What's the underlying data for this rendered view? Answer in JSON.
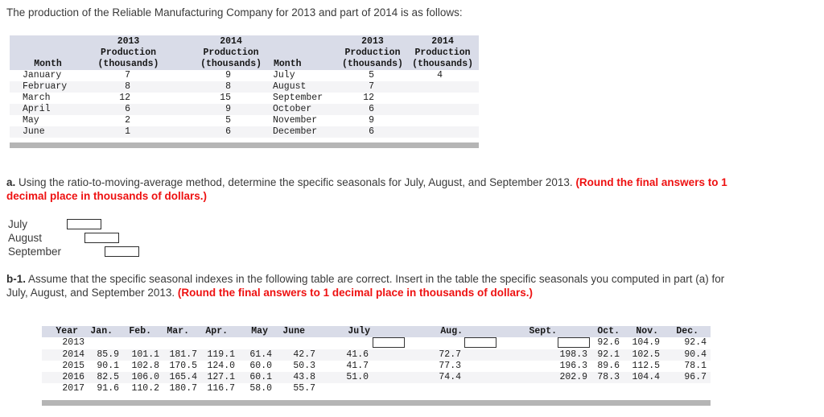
{
  "intro": "The production of the Reliable Manufacturing Company for 2013 and part of 2014 is as follows:",
  "colors": {
    "accent_red": "#ee1111",
    "table_header_bg": "#d9dce8",
    "row_alt_bg": "#f4f4f6",
    "scrollbar": "#b5b5b5"
  },
  "table1": {
    "headers": {
      "month": "Month",
      "prod2013": [
        "2013",
        "Production",
        "(thousands)"
      ],
      "prod2014": [
        "2014",
        "Production",
        "(thousands)"
      ]
    },
    "rows": [
      {
        "m1": "January",
        "a13": "7",
        "a14": "9",
        "m2": "July",
        "b13": "5",
        "b14": "4"
      },
      {
        "m1": "February",
        "a13": "8",
        "a14": "8",
        "m2": "August",
        "b13": "7",
        "b14": ""
      },
      {
        "m1": "March",
        "a13": "12",
        "a14": "15",
        "m2": "September",
        "b13": "12",
        "b14": ""
      },
      {
        "m1": "April",
        "a13": "6",
        "a14": "9",
        "m2": "October",
        "b13": "6",
        "b14": ""
      },
      {
        "m1": "May",
        "a13": "2",
        "a14": "5",
        "m2": "November",
        "b13": "9",
        "b14": ""
      },
      {
        "m1": "June",
        "a13": "1",
        "a14": "6",
        "m2": "December",
        "b13": "6",
        "b14": ""
      }
    ]
  },
  "section_a": {
    "label": "a.",
    "text": "Using the ratio-to-moving-average method, determine the specific seasonals for July, August, and September 2013.",
    "note": "(Round the final answers to 1 decimal place in thousands of dollars.)",
    "answers": [
      {
        "label": "July",
        "value": ""
      },
      {
        "label": "August",
        "value": ""
      },
      {
        "label": "September",
        "value": ""
      }
    ]
  },
  "section_b1": {
    "label": "b-1.",
    "text": "Assume that the specific seasonal indexes in the following table are correct. Insert in the table the specific seasonals you computed in part (a) for July, August, and September 2013.",
    "note": "(Round the final answers to 1 decimal place in thousands of dollars.)"
  },
  "table2": {
    "headers": [
      "Year",
      "Jan.",
      "Feb.",
      "Mar.",
      "Apr.",
      "May",
      "June",
      "July",
      "Aug.",
      "Sept.",
      "Oct.",
      "Nov.",
      "Dec."
    ],
    "rows": [
      {
        "year": "2013",
        "values": [
          "",
          "",
          "",
          "",
          "",
          "",
          "",
          "",
          "",
          "92.6",
          "104.9",
          "92.4"
        ],
        "input_cols": [
          6,
          7,
          8
        ]
      },
      {
        "year": "2014",
        "values": [
          "85.9",
          "101.1",
          "181.7",
          "119.1",
          "61.4",
          "42.7",
          "41.6",
          "72.7",
          "198.3",
          "92.1",
          "102.5",
          "90.4"
        ]
      },
      {
        "year": "2015",
        "values": [
          "90.1",
          "102.8",
          "170.5",
          "124.0",
          "60.0",
          "50.3",
          "41.7",
          "77.3",
          "196.3",
          "89.6",
          "112.5",
          "78.1"
        ]
      },
      {
        "year": "2016",
        "values": [
          "82.5",
          "106.0",
          "165.4",
          "127.1",
          "60.1",
          "43.8",
          "51.0",
          "74.4",
          "202.9",
          "78.3",
          "104.4",
          "96.7"
        ]
      },
      {
        "year": "2017",
        "values": [
          "91.6",
          "110.2",
          "180.7",
          "116.7",
          "58.0",
          "55.7",
          "",
          "",
          "",
          "",
          "",
          ""
        ]
      }
    ]
  }
}
